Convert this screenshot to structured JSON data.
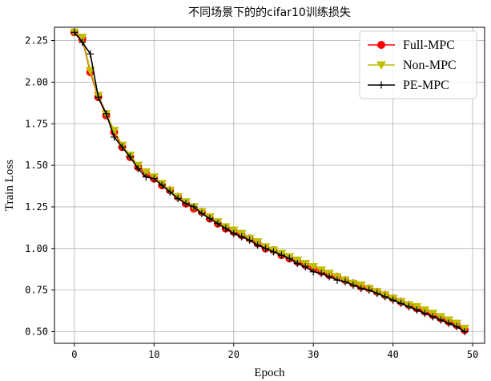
{
  "chart_data": {
    "type": "line",
    "title": "不同场景下的的cifar10训练损失",
    "xlabel": "Epoch",
    "ylabel": "Train Loss",
    "xlim": [
      -2.5,
      51.5
    ],
    "ylim": [
      0.43,
      2.33
    ],
    "x_ticks": [
      0,
      10,
      20,
      30,
      40,
      50
    ],
    "y_ticks": [
      0.5,
      0.75,
      1.0,
      1.25,
      1.5,
      1.75,
      2.0,
      2.25
    ],
    "x_tick_labels": [
      "0",
      "10",
      "20",
      "30",
      "40",
      "50"
    ],
    "y_tick_labels": [
      "0.50",
      "0.75",
      "1.00",
      "1.25",
      "1.50",
      "1.75",
      "2.00",
      "2.25"
    ],
    "grid": true,
    "legend_position": "top-right",
    "x": [
      0,
      1,
      2,
      3,
      4,
      5,
      6,
      7,
      8,
      9,
      10,
      11,
      12,
      13,
      14,
      15,
      16,
      17,
      18,
      19,
      20,
      21,
      22,
      23,
      24,
      25,
      26,
      27,
      28,
      29,
      30,
      31,
      32,
      33,
      34,
      35,
      36,
      37,
      38,
      39,
      40,
      41,
      42,
      43,
      44,
      45,
      46,
      47,
      48,
      49
    ],
    "series": [
      {
        "name": "Full-MPC",
        "color": "#ff0000",
        "marker": "circle",
        "values": [
          2.3,
          2.26,
          2.06,
          1.91,
          1.8,
          1.7,
          1.61,
          1.55,
          1.49,
          1.45,
          1.42,
          1.38,
          1.35,
          1.31,
          1.27,
          1.24,
          1.22,
          1.18,
          1.15,
          1.12,
          1.1,
          1.08,
          1.06,
          1.03,
          1.0,
          0.99,
          0.96,
          0.94,
          0.92,
          0.9,
          0.88,
          0.86,
          0.84,
          0.83,
          0.81,
          0.79,
          0.77,
          0.76,
          0.74,
          0.72,
          0.7,
          0.68,
          0.66,
          0.64,
          0.62,
          0.6,
          0.58,
          0.56,
          0.54,
          0.51
        ]
      },
      {
        "name": "Non-MPC",
        "color": "#bfbf00",
        "marker": "triangle-down",
        "values": [
          2.3,
          2.27,
          2.07,
          1.92,
          1.81,
          1.71,
          1.62,
          1.56,
          1.5,
          1.46,
          1.43,
          1.39,
          1.35,
          1.31,
          1.28,
          1.25,
          1.22,
          1.19,
          1.16,
          1.13,
          1.11,
          1.09,
          1.06,
          1.04,
          1.01,
          0.99,
          0.97,
          0.95,
          0.93,
          0.91,
          0.89,
          0.87,
          0.85,
          0.83,
          0.81,
          0.79,
          0.78,
          0.76,
          0.74,
          0.72,
          0.7,
          0.68,
          0.66,
          0.65,
          0.63,
          0.61,
          0.59,
          0.57,
          0.55,
          0.52
        ]
      },
      {
        "name": "PE-MPC",
        "color": "#000000",
        "marker": "plus",
        "values": [
          2.3,
          2.24,
          2.17,
          1.91,
          1.81,
          1.67,
          1.61,
          1.55,
          1.48,
          1.43,
          1.42,
          1.38,
          1.34,
          1.3,
          1.27,
          1.25,
          1.21,
          1.18,
          1.15,
          1.12,
          1.09,
          1.07,
          1.05,
          1.02,
          1.0,
          0.98,
          0.96,
          0.94,
          0.91,
          0.89,
          0.86,
          0.85,
          0.83,
          0.81,
          0.8,
          0.78,
          0.76,
          0.75,
          0.73,
          0.71,
          0.69,
          0.67,
          0.65,
          0.63,
          0.61,
          0.59,
          0.57,
          0.55,
          0.53,
          0.5
        ]
      }
    ]
  }
}
